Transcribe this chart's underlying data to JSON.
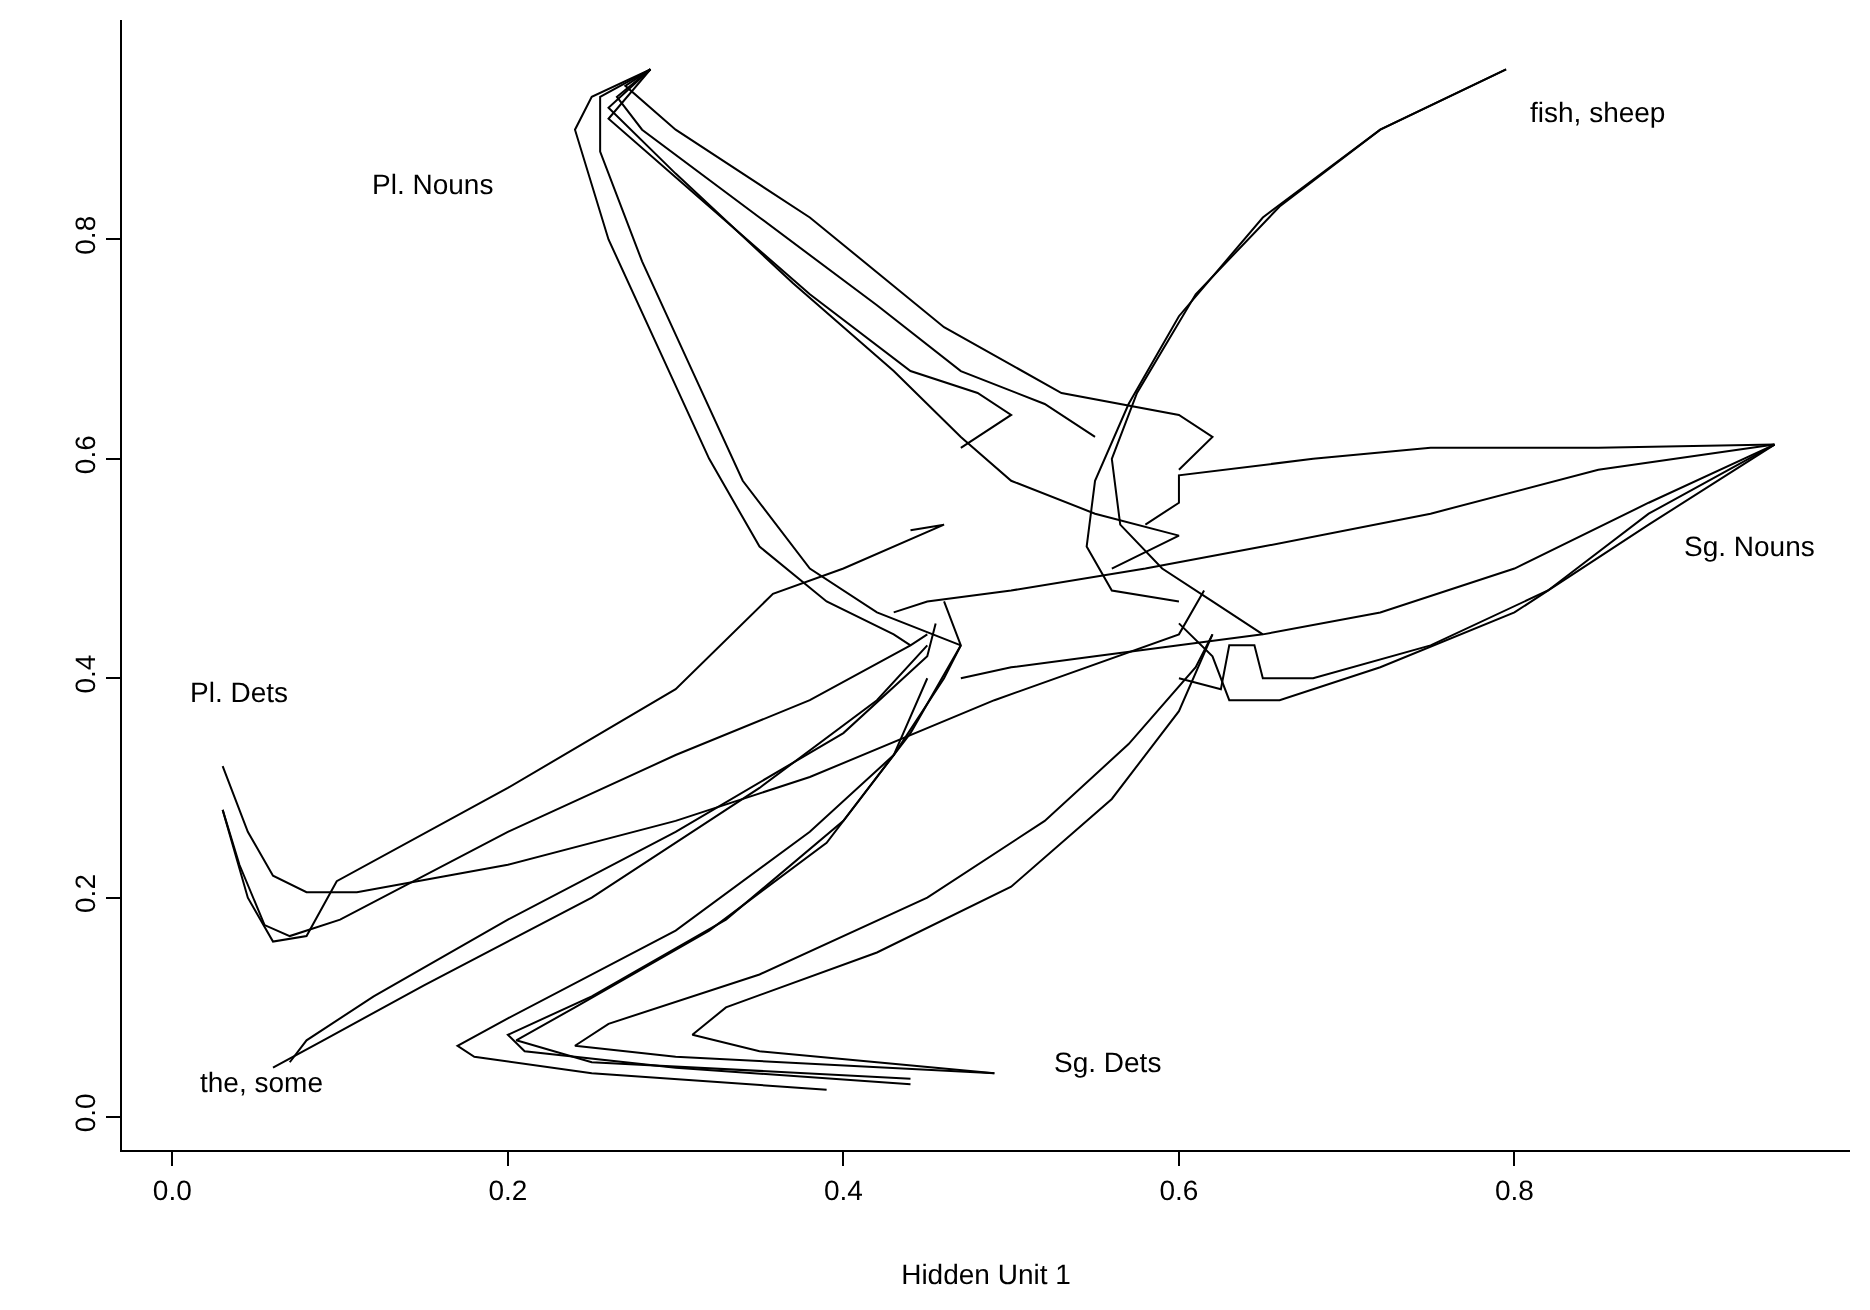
{
  "chart_data": {
    "type": "line",
    "xlabel": "Hidden Unit 1",
    "xlim": [
      -0.03,
      1.0
    ],
    "ylim": [
      -0.03,
      1.0
    ],
    "xticks": [
      {
        "value": 0,
        "label": "0.0"
      },
      0.2,
      0.4,
      0.6,
      0.8
    ],
    "yticks": [
      {
        "value": 0,
        "label": "0.0"
      },
      0.2,
      0.4,
      0.6,
      0.8
    ],
    "marker": "none",
    "line_style": "solid",
    "annotations": [
      "Pl. Nouns",
      "fish, sheep",
      "Sg. Nouns",
      "Pl. Dets",
      "the, some",
      "Sg. Dets"
    ],
    "series": [
      {
        "color": "#000000",
        "x": [
          0.03,
          0.045,
          0.06,
          0.08,
          0.11,
          0.2,
          0.3,
          0.38,
          0.49,
          0.6,
          0.615
        ],
        "values": [
          0.32,
          0.26,
          0.22,
          0.205,
          0.205,
          0.23,
          0.27,
          0.31,
          0.38,
          0.44,
          0.48
        ]
      },
      {
        "color": "#000000",
        "x": [
          0.03,
          0.04,
          0.055,
          0.07,
          0.1,
          0.2,
          0.3,
          0.38,
          0.44,
          0.45
        ],
        "values": [
          0.28,
          0.23,
          0.175,
          0.165,
          0.18,
          0.26,
          0.33,
          0.38,
          0.43,
          0.44
        ]
      },
      {
        "color": "#000000",
        "x": [
          0.03,
          0.045,
          0.06,
          0.08,
          0.098,
          0.2,
          0.3,
          0.358,
          0.4,
          0.46,
          0.44
        ],
        "values": [
          0.28,
          0.2,
          0.16,
          0.165,
          0.215,
          0.3,
          0.39,
          0.477,
          0.5,
          0.54,
          0.535
        ]
      },
      {
        "color": "#000000",
        "x": [
          0.07,
          0.08,
          0.12,
          0.2,
          0.3,
          0.4,
          0.45,
          0.455
        ],
        "values": [
          0.05,
          0.07,
          0.11,
          0.18,
          0.26,
          0.35,
          0.42,
          0.45
        ]
      },
      {
        "color": "#000000",
        "x": [
          0.06,
          0.09,
          0.15,
          0.25,
          0.35,
          0.42,
          0.45
        ],
        "values": [
          0.045,
          0.07,
          0.12,
          0.2,
          0.3,
          0.38,
          0.43
        ]
      },
      {
        "color": "#000000",
        "x": [
          0.39,
          0.25,
          0.18,
          0.17,
          0.2,
          0.3,
          0.38,
          0.43,
          0.46,
          0.47
        ],
        "values": [
          0.025,
          0.04,
          0.055,
          0.065,
          0.09,
          0.17,
          0.26,
          0.33,
          0.4,
          0.43
        ]
      },
      {
        "color": "#000000",
        "x": [
          0.44,
          0.3,
          0.21,
          0.2,
          0.25,
          0.33,
          0.4,
          0.44,
          0.47,
          0.46
        ],
        "values": [
          0.03,
          0.045,
          0.06,
          0.075,
          0.11,
          0.18,
          0.27,
          0.35,
          0.43,
          0.47
        ]
      },
      {
        "color": "#000000",
        "x": [
          0.44,
          0.25,
          0.205,
          0.24,
          0.32,
          0.39,
          0.43,
          0.45
        ],
        "values": [
          0.035,
          0.05,
          0.07,
          0.1,
          0.17,
          0.25,
          0.33,
          0.4
        ]
      },
      {
        "color": "#000000",
        "x": [
          0.49,
          0.3,
          0.24,
          0.26,
          0.35,
          0.45,
          0.52,
          0.57,
          0.61,
          0.62
        ],
        "values": [
          0.04,
          0.055,
          0.065,
          0.085,
          0.13,
          0.2,
          0.27,
          0.34,
          0.41,
          0.44
        ]
      },
      {
        "color": "#000000",
        "x": [
          0.49,
          0.35,
          0.31,
          0.33,
          0.42,
          0.5,
          0.56,
          0.6,
          0.62
        ],
        "values": [
          0.04,
          0.06,
          0.075,
          0.1,
          0.15,
          0.21,
          0.29,
          0.37,
          0.44
        ]
      },
      {
        "color": "#000000",
        "x": [
          0.285,
          0.25,
          0.24,
          0.26,
          0.29,
          0.32,
          0.35,
          0.39,
          0.43,
          0.44
        ],
        "values": [
          0.955,
          0.93,
          0.9,
          0.8,
          0.7,
          0.6,
          0.52,
          0.47,
          0.44,
          0.43
        ]
      },
      {
        "color": "#000000",
        "x": [
          0.285,
          0.255,
          0.255,
          0.28,
          0.31,
          0.34,
          0.38,
          0.42,
          0.47
        ],
        "values": [
          0.955,
          0.93,
          0.88,
          0.78,
          0.68,
          0.58,
          0.5,
          0.46,
          0.43
        ]
      },
      {
        "color": "#000000",
        "x": [
          0.285,
          0.27,
          0.3,
          0.38,
          0.46,
          0.53,
          0.6,
          0.62,
          0.6
        ],
        "values": [
          0.955,
          0.94,
          0.9,
          0.82,
          0.72,
          0.66,
          0.64,
          0.62,
          0.59
        ]
      },
      {
        "color": "#000000",
        "x": [
          0.285,
          0.265,
          0.28,
          0.35,
          0.42,
          0.47,
          0.52,
          0.55
        ],
        "values": [
          0.955,
          0.93,
          0.9,
          0.82,
          0.74,
          0.68,
          0.65,
          0.62
        ]
      },
      {
        "color": "#000000",
        "x": [
          0.285,
          0.26,
          0.3,
          0.37,
          0.43,
          0.47,
          0.5,
          0.55,
          0.6,
          0.56
        ],
        "values": [
          0.955,
          0.92,
          0.86,
          0.76,
          0.68,
          0.62,
          0.58,
          0.55,
          0.53,
          0.5
        ]
      },
      {
        "color": "#000000",
        "x": [
          0.285,
          0.26,
          0.32,
          0.38,
          0.44,
          0.48,
          0.5,
          0.47
        ],
        "values": [
          0.955,
          0.91,
          0.83,
          0.75,
          0.68,
          0.66,
          0.64,
          0.61
        ]
      },
      {
        "color": "#000000",
        "x": [
          0.795,
          0.72,
          0.66,
          0.61,
          0.575,
          0.56,
          0.565,
          0.59,
          0.62,
          0.65
        ],
        "values": [
          0.955,
          0.9,
          0.83,
          0.75,
          0.66,
          0.6,
          0.54,
          0.5,
          0.47,
          0.44
        ]
      },
      {
        "color": "#000000",
        "x": [
          0.795,
          0.72,
          0.65,
          0.6,
          0.57,
          0.55,
          0.545,
          0.56,
          0.6
        ],
        "values": [
          0.955,
          0.9,
          0.82,
          0.73,
          0.65,
          0.58,
          0.52,
          0.48,
          0.47
        ]
      },
      {
        "color": "#000000",
        "x": [
          0.955,
          0.85,
          0.75,
          0.68,
          0.6,
          0.6,
          0.58
        ],
        "values": [
          0.613,
          0.61,
          0.61,
          0.6,
          0.585,
          0.56,
          0.54
        ]
      },
      {
        "color": "#000000",
        "x": [
          0.955,
          0.85,
          0.75,
          0.65,
          0.58,
          0.5,
          0.45,
          0.43
        ],
        "values": [
          0.613,
          0.59,
          0.55,
          0.52,
          0.5,
          0.48,
          0.47,
          0.46
        ]
      },
      {
        "color": "#000000",
        "x": [
          0.955,
          0.88,
          0.8,
          0.72,
          0.65,
          0.6,
          0.55,
          0.5,
          0.47
        ],
        "values": [
          0.613,
          0.56,
          0.5,
          0.46,
          0.44,
          0.43,
          0.42,
          0.41,
          0.4
        ]
      },
      {
        "color": "#000000",
        "x": [
          0.955,
          0.88,
          0.82,
          0.75,
          0.68,
          0.65,
          0.645,
          0.63,
          0.625,
          0.6
        ],
        "values": [
          0.613,
          0.55,
          0.48,
          0.43,
          0.4,
          0.4,
          0.43,
          0.43,
          0.39,
          0.4
        ]
      },
      {
        "color": "#000000",
        "x": [
          0.955,
          0.88,
          0.8,
          0.72,
          0.66,
          0.63,
          0.62,
          0.6
        ],
        "values": [
          0.613,
          0.54,
          0.46,
          0.41,
          0.38,
          0.38,
          0.42,
          0.45
        ]
      }
    ]
  }
}
